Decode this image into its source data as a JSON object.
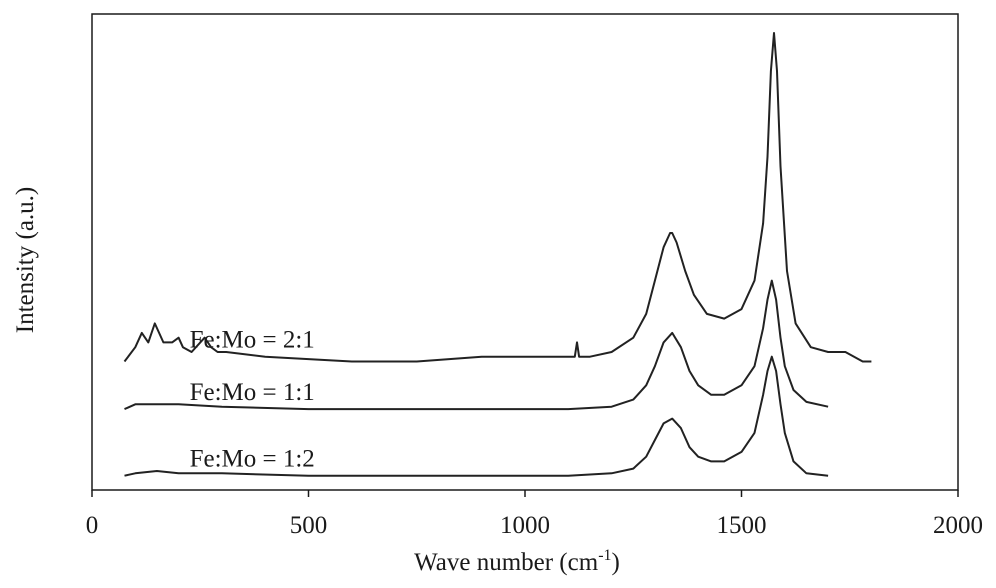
{
  "chart_data": {
    "type": "line",
    "title": "",
    "xlabel": "Wave number (cm",
    "xlabel_sup": "-1",
    "xlabel_close": ")",
    "ylabel": "Intensity (a.u.)",
    "xlim": [
      0,
      2000
    ],
    "xticks": [
      0,
      500,
      1000,
      1500,
      2000
    ],
    "xtick_labels": [
      "0",
      "500",
      "1000",
      "1500",
      "2000"
    ],
    "ylim": [
      0,
      100
    ],
    "yticks_shown": false,
    "grid": false,
    "legend": "none (series labeled inline)",
    "line_color": "#222222",
    "series": [
      {
        "name": "Fe:Mo = 2:1",
        "baseline": 28,
        "x": [
          75,
          100,
          115,
          130,
          145,
          155,
          165,
          185,
          200,
          210,
          230,
          260,
          275,
          290,
          310,
          400,
          600,
          750,
          900,
          1000,
          1080,
          1115,
          1120,
          1125,
          1150,
          1200,
          1250,
          1280,
          1300,
          1320,
          1335,
          1340,
          1350,
          1370,
          1390,
          1420,
          1460,
          1500,
          1530,
          1550,
          1560,
          1568,
          1575,
          1582,
          1590,
          1605,
          1625,
          1660,
          1700,
          1740,
          1780,
          1800
        ],
        "y": [
          27,
          30,
          33,
          31,
          35,
          33,
          31,
          31,
          32,
          30,
          29,
          32,
          30,
          29,
          29,
          28,
          27,
          27,
          28,
          28,
          28,
          28,
          31,
          28,
          28,
          29,
          32,
          37,
          44,
          51,
          54,
          54,
          52,
          46,
          41,
          37,
          36,
          38,
          44,
          56,
          70,
          88,
          96,
          88,
          68,
          46,
          35,
          30,
          29,
          29,
          27,
          27
        ]
      },
      {
        "name": "Fe:Mo = 1:1",
        "baseline": 17,
        "x": [
          75,
          100,
          150,
          200,
          300,
          500,
          700,
          900,
          1100,
          1200,
          1250,
          1280,
          1300,
          1320,
          1340,
          1360,
          1380,
          1400,
          1430,
          1460,
          1500,
          1530,
          1550,
          1560,
          1570,
          1580,
          1590,
          1600,
          1620,
          1650,
          1700
        ],
        "y": [
          17,
          18,
          18,
          18,
          17.5,
          17,
          17,
          17,
          17,
          17.5,
          19,
          22,
          26,
          31,
          33,
          30,
          25,
          22,
          20,
          20,
          22,
          26,
          34,
          40,
          44,
          40,
          32,
          26,
          21,
          18.5,
          17.5
        ]
      },
      {
        "name": "Fe:Mo = 1:2",
        "baseline": 3,
        "x": [
          75,
          100,
          150,
          200,
          300,
          500,
          700,
          900,
          1100,
          1200,
          1250,
          1280,
          1300,
          1320,
          1340,
          1360,
          1380,
          1400,
          1430,
          1460,
          1500,
          1530,
          1550,
          1560,
          1570,
          1580,
          1590,
          1600,
          1620,
          1650,
          1700
        ],
        "y": [
          3,
          3.5,
          4,
          3.5,
          3.5,
          3,
          3,
          3,
          3,
          3.5,
          4.5,
          7,
          10.5,
          14,
          15,
          13,
          9,
          7,
          6,
          6,
          8,
          12,
          20,
          25,
          28,
          25,
          18,
          12,
          6,
          3.5,
          3
        ]
      }
    ]
  }
}
